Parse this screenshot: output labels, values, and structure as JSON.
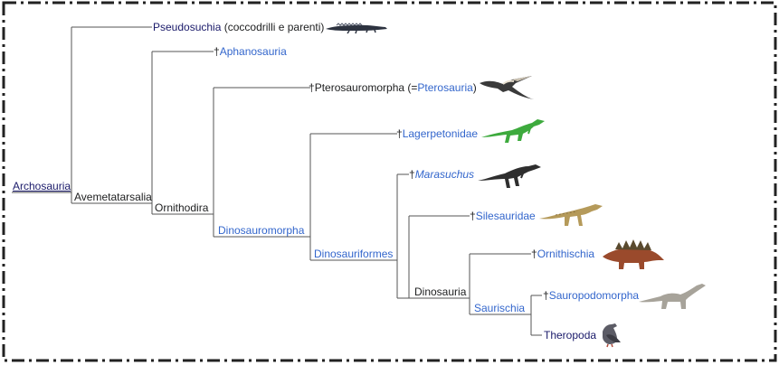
{
  "root": {
    "label": "Archosauria"
  },
  "clades": {
    "avemetatarsalia": "Avemetatarsalia",
    "ornithodira": "Ornithodira",
    "dinosauromorpha": "Dinosauromorpha",
    "dinosauriformes": "Dinosauriformes",
    "dinosauria": "Dinosauria",
    "saurischia": "Saurischia"
  },
  "taxa": {
    "pseudosuchia": {
      "name": "Pseudosuchia",
      "note": " (coccodrilli e parenti)",
      "icon": "crocodile-icon"
    },
    "aphanosauria": {
      "dagger": "†",
      "name": "Aphanosauria"
    },
    "pterosauromorpha": {
      "dagger": "†",
      "name": "Pterosauromorpha",
      "open": " (=",
      "link": "Pterosauria",
      "close": ")",
      "icon": "pterosaur-icon"
    },
    "lagerpetonidae": {
      "dagger": "†",
      "name": "Lagerpetonidae",
      "icon": "lagerpetid-icon"
    },
    "marasuchus": {
      "dagger": "†",
      "name": "Marasuchus",
      "icon": "marasuchus-icon"
    },
    "silesauridae": {
      "dagger": "†",
      "name": "Silesauridae",
      "icon": "silesaurid-icon"
    },
    "ornithischia": {
      "dagger": "†",
      "name": "Ornithischia",
      "icon": "stegosaur-icon"
    },
    "sauropodomorpha": {
      "dagger": "†",
      "name": "Sauropodomorpha",
      "icon": "sauropod-icon"
    },
    "theropoda": {
      "name": "Theropoda",
      "icon": "pigeon-icon"
    }
  },
  "colors": {
    "link": "#3366cc",
    "visited": "#1a1a6a",
    "line": "#555555",
    "frame": "#222222"
  }
}
